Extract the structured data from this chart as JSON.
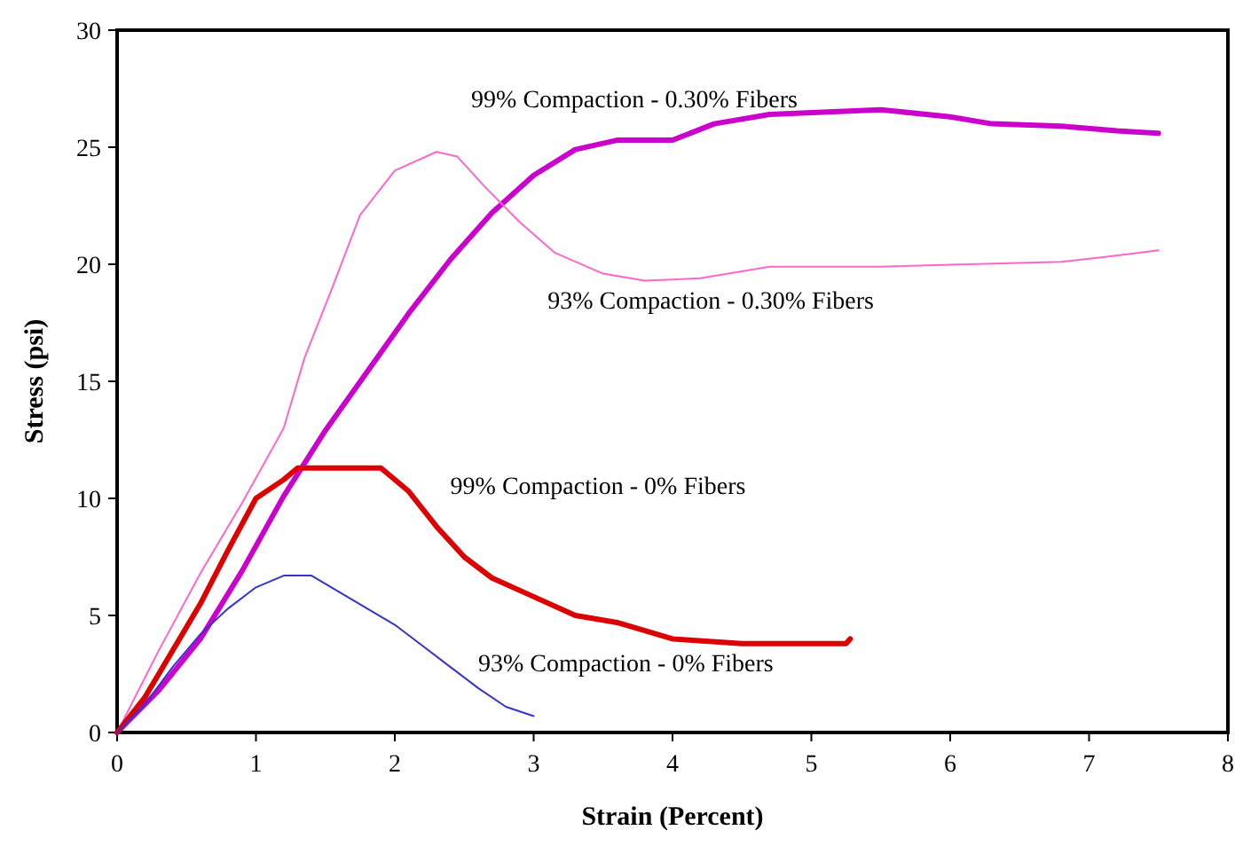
{
  "chart_data": {
    "type": "line",
    "xlabel": "Strain (Percent)",
    "ylabel": "Stress (psi)",
    "xlim": [
      0,
      8
    ],
    "ylim": [
      0,
      30
    ],
    "xticks": [
      0,
      1,
      2,
      3,
      4,
      5,
      6,
      7,
      8
    ],
    "yticks": [
      0,
      5,
      10,
      15,
      20,
      25,
      30
    ],
    "marker": "none",
    "line_style": "solid",
    "series": [
      {
        "name": "99% Compaction - 0.30% Fibers",
        "color": "#cc00cc",
        "x": [
          0,
          0.3,
          0.6,
          0.9,
          1.2,
          1.5,
          1.8,
          2.1,
          2.4,
          2.7,
          3.0,
          3.3,
          3.6,
          4.0,
          4.3,
          4.7,
          5.5,
          6.0,
          6.3,
          6.8,
          7.2,
          7.5
        ],
        "values": [
          0,
          1.8,
          4.0,
          6.9,
          10.1,
          12.9,
          15.4,
          17.9,
          20.2,
          22.2,
          23.8,
          24.9,
          25.3,
          25.3,
          26.0,
          26.4,
          26.6,
          26.3,
          26.0,
          25.9,
          25.7,
          25.6
        ]
      },
      {
        "name": "93% Compaction - 0.30% Fibers",
        "color": "#ff66cc",
        "x": [
          0,
          0.3,
          0.6,
          0.9,
          1.2,
          1.35,
          1.55,
          1.75,
          2.0,
          2.3,
          2.45,
          2.65,
          2.9,
          3.15,
          3.5,
          3.8,
          4.2,
          4.7,
          5.5,
          6.8,
          7.1,
          7.5
        ],
        "values": [
          0,
          3.5,
          6.8,
          9.8,
          13.0,
          16.0,
          19.0,
          22.1,
          24.0,
          24.8,
          24.6,
          23.3,
          21.8,
          20.5,
          19.6,
          19.3,
          19.4,
          19.9,
          19.9,
          20.1,
          20.3,
          20.6
        ]
      },
      {
        "name": "99% Compaction - 0% Fibers",
        "color": "#dd0000",
        "x": [
          0,
          0.2,
          0.4,
          0.6,
          0.8,
          1.0,
          1.2,
          1.3,
          1.6,
          1.9,
          2.1,
          2.3,
          2.5,
          2.7,
          3.0,
          3.3,
          3.6,
          4.0,
          4.5,
          5.0,
          5.25,
          5.28
        ],
        "values": [
          0,
          1.5,
          3.5,
          5.5,
          7.8,
          10.0,
          10.8,
          11.3,
          11.3,
          11.3,
          10.3,
          8.8,
          7.5,
          6.6,
          5.8,
          5.0,
          4.7,
          4.0,
          3.8,
          3.8,
          3.8,
          4.0
        ]
      },
      {
        "name": "93% Compaction - 0% Fibers",
        "color": "#3333cc",
        "x": [
          0,
          0.2,
          0.4,
          0.6,
          0.8,
          1.0,
          1.2,
          1.4,
          1.6,
          1.8,
          2.0,
          2.2,
          2.4,
          2.6,
          2.8,
          3.0
        ],
        "values": [
          0,
          1.2,
          2.8,
          4.2,
          5.3,
          6.2,
          6.7,
          6.7,
          6.0,
          5.3,
          4.6,
          3.7,
          2.8,
          1.9,
          1.1,
          0.7
        ]
      }
    ]
  }
}
